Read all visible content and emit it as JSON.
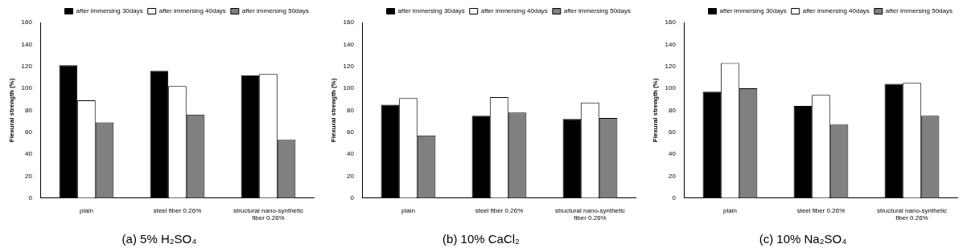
{
  "chart_data": [
    {
      "type": "bar",
      "title": "(a) 5% H₂SO₄",
      "categories": [
        "plain",
        "steel fiber 0.26%",
        "structural nano-synthetic fiber 0.26%"
      ],
      "series": [
        {
          "name": "after immersing 30days",
          "color": "#000000",
          "values": [
            121,
            116,
            112
          ]
        },
        {
          "name": "after immersing 40days",
          "color": "#ffffff",
          "values": [
            89,
            102,
            113
          ]
        },
        {
          "name": "after immersing 50days",
          "color": "#808080",
          "values": [
            69,
            76,
            53
          ]
        }
      ],
      "y_label": "Flexural strength (%)",
      "ylim": [
        0,
        160
      ],
      "yticks": [
        0,
        20,
        40,
        60,
        80,
        100,
        120,
        140,
        160
      ],
      "grid": false,
      "legend": "upper right"
    },
    {
      "type": "bar",
      "title": "(b) 10% CaCl₂",
      "categories": [
        "plain",
        "steel fiber 0.26%",
        "structural nano-synthetic fiber 0.26%"
      ],
      "series": [
        {
          "name": "after immersing 30days",
          "color": "#000000",
          "values": [
            85,
            75,
            72
          ]
        },
        {
          "name": "after immersing 40days",
          "color": "#ffffff",
          "values": [
            91,
            92,
            87
          ]
        },
        {
          "name": "after immersing 50days",
          "color": "#808080",
          "values": [
            57,
            78,
            73
          ]
        }
      ],
      "y_label": "Flexural strength (%)",
      "ylim": [
        0,
        160
      ],
      "yticks": [
        0,
        20,
        40,
        60,
        80,
        100,
        120,
        140,
        160
      ],
      "grid": false,
      "legend": "upper right"
    },
    {
      "type": "bar",
      "title": "(c) 10% Na₂SO₄",
      "categories": [
        "plain",
        "steel fiber 0.26%",
        "structural nano-synthetic fiber 0.26%"
      ],
      "series": [
        {
          "name": "after immersing 30days",
          "color": "#000000",
          "values": [
            97,
            84,
            104
          ]
        },
        {
          "name": "after immersing 40days",
          "color": "#ffffff",
          "values": [
            123,
            94,
            105
          ]
        },
        {
          "name": "after immersing 50days",
          "color": "#808080",
          "values": [
            100,
            67,
            75
          ]
        }
      ],
      "y_label": "Flexural strength (%)",
      "ylim": [
        0,
        160
      ],
      "yticks": [
        0,
        20,
        40,
        60,
        80,
        100,
        120,
        140,
        160
      ],
      "grid": false,
      "legend": "upper right"
    }
  ]
}
